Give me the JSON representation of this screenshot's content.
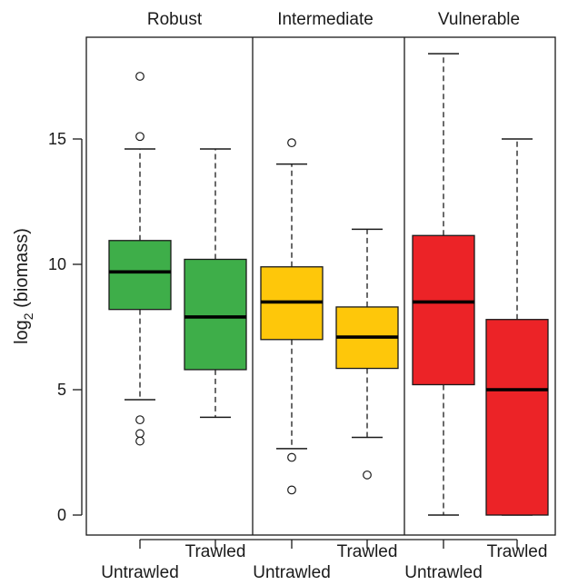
{
  "chart_data": {
    "type": "boxplot",
    "ylabel_main": "log",
    "ylabel_sub": "2",
    "ylabel_rest": " (biomass)",
    "ylim": [
      -0.5,
      19
    ],
    "yticks": [
      0,
      5,
      10,
      15
    ],
    "panels": [
      {
        "title": "Robust",
        "color": "#3eae49",
        "boxes": [
          {
            "category": "Untrawled",
            "whisker_low": 4.6,
            "q1": 8.2,
            "median": 9.7,
            "q3": 10.95,
            "whisker_high": 14.6,
            "outliers": [
              17.5,
              15.1,
              3.8,
              3.25,
              2.95
            ]
          },
          {
            "category": "Trawled",
            "whisker_low": 3.9,
            "q1": 5.8,
            "median": 7.9,
            "q3": 10.2,
            "whisker_high": 14.6,
            "outliers": []
          }
        ]
      },
      {
        "title": "Intermediate",
        "color": "#fec70a",
        "boxes": [
          {
            "category": "Untrawled",
            "whisker_low": 2.65,
            "q1": 7.0,
            "median": 8.5,
            "q3": 9.9,
            "whisker_high": 14.0,
            "outliers": [
              14.85,
              2.3,
              1.0
            ]
          },
          {
            "category": "Trawled",
            "whisker_low": 3.1,
            "q1": 5.85,
            "median": 7.1,
            "q3": 8.3,
            "whisker_high": 11.4,
            "outliers": [
              1.6
            ]
          }
        ]
      },
      {
        "title": "Vulnerable",
        "color": "#ec2327",
        "boxes": [
          {
            "category": "Untrawled",
            "whisker_low": 0.0,
            "q1": 5.2,
            "median": 8.5,
            "q3": 11.15,
            "whisker_high": 18.4,
            "outliers": []
          },
          {
            "category": "Trawled",
            "whisker_low": 0.0,
            "q1": 0.0,
            "median": 5.0,
            "q3": 7.8,
            "whisker_high": 15.0,
            "outliers": []
          }
        ]
      }
    ]
  }
}
